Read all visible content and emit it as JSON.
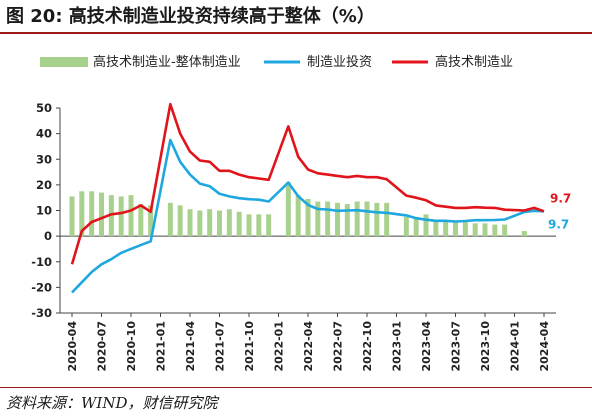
{
  "page": {
    "title": "图 20:  高技术制造业投资持续高于整体（%）",
    "source": "资料来源：WIND，财信研究院"
  },
  "colors": {
    "gap_bar": "#a9d18e",
    "overall_line": "#1fa7e0",
    "hightech_line": "#e0141a",
    "title_rule": "#9e1b1b"
  },
  "chart_data": {
    "type": "bar",
    "ylim": [
      -30,
      50
    ],
    "yticks": [
      -30,
      -20,
      -10,
      0,
      10,
      20,
      30,
      40,
      50
    ],
    "x": [
      "2020-04",
      "2020-05",
      "2020-06",
      "2020-07",
      "2020-08",
      "2020-09",
      "2020-10",
      "2020-11",
      "2020-12",
      "2021-02",
      "2021-03",
      "2021-04",
      "2021-05",
      "2021-06",
      "2021-07",
      "2021-08",
      "2021-09",
      "2021-10",
      "2021-11",
      "2021-12",
      "2022-02",
      "2022-03",
      "2022-04",
      "2022-05",
      "2022-06",
      "2022-07",
      "2022-08",
      "2022-09",
      "2022-10",
      "2022-11",
      "2022-12",
      "2023-02",
      "2023-03",
      "2023-04",
      "2023-05",
      "2023-06",
      "2023-07",
      "2023-08",
      "2023-09",
      "2023-10",
      "2023-11",
      "2023-12",
      "2024-02",
      "2024-03",
      "2024-04"
    ],
    "xtick_labels": [
      "2020-04",
      "2020-07",
      "2020-10",
      "2021-01",
      "2021-04",
      "2021-07",
      "2021-10",
      "2022-01",
      "2022-04",
      "2022-07",
      "2022-10",
      "2023-01",
      "2023-04",
      "2023-07",
      "2023-10",
      "2024-01",
      "2024-04"
    ],
    "legend": [
      "高技术制造业-整体制造业",
      "制造业投资",
      "高技术制造业"
    ],
    "series": [
      {
        "name": "高技术制造业-整体制造业",
        "type": "bar",
        "values": [
          15.5,
          17.5,
          17.5,
          17.0,
          16.0,
          15.5,
          16.0,
          12.5,
          12.0,
          13.0,
          12.0,
          10.5,
          10.0,
          10.5,
          10.0,
          10.5,
          9.5,
          8.5,
          8.5,
          8.5,
          21.0,
          16.0,
          14.5,
          13.5,
          13.5,
          13.0,
          12.5,
          13.5,
          13.5,
          13.0,
          13.0,
          7.5,
          7.5,
          8.5,
          6.0,
          5.5,
          5.5,
          5.5,
          5.0,
          5.0,
          4.5,
          4.5,
          2.0,
          0.0,
          0.0
        ]
      },
      {
        "name": "制造业投资",
        "type": "line",
        "values": [
          -22.0,
          -18.0,
          -14.0,
          -11.0,
          -9.0,
          -6.5,
          -5.0,
          -3.5,
          -2.0,
          37.5,
          29.0,
          24.0,
          20.5,
          19.5,
          16.5,
          15.5,
          14.8,
          14.4,
          14.2,
          13.5,
          20.9,
          15.6,
          12.2,
          10.6,
          10.4,
          9.9,
          10.0,
          10.1,
          9.7,
          9.3,
          9.1,
          8.1,
          7.0,
          6.4,
          6.0,
          6.0,
          5.7,
          5.9,
          6.2,
          6.2,
          6.3,
          6.5,
          9.4,
          9.9,
          9.7
        ]
      },
      {
        "name": "高技术制造业",
        "type": "line",
        "values": [
          -11.0,
          2.0,
          5.5,
          7.0,
          8.5,
          9.0,
          10.0,
          12.0,
          9.5,
          51.5,
          40.0,
          33.0,
          29.5,
          29.0,
          25.5,
          25.5,
          24.0,
          23.0,
          22.5,
          22.0,
          42.8,
          31.0,
          26.0,
          24.5,
          24.0,
          23.5,
          23.0,
          23.5,
          23.0,
          23.0,
          22.2,
          15.8,
          15.0,
          14.0,
          12.0,
          11.5,
          11.0,
          11.0,
          11.3,
          11.1,
          11.0,
          10.3,
          10.0,
          11.0,
          9.7
        ]
      }
    ],
    "end_labels": {
      "hightech": "9.7",
      "overall": "9.7"
    }
  }
}
